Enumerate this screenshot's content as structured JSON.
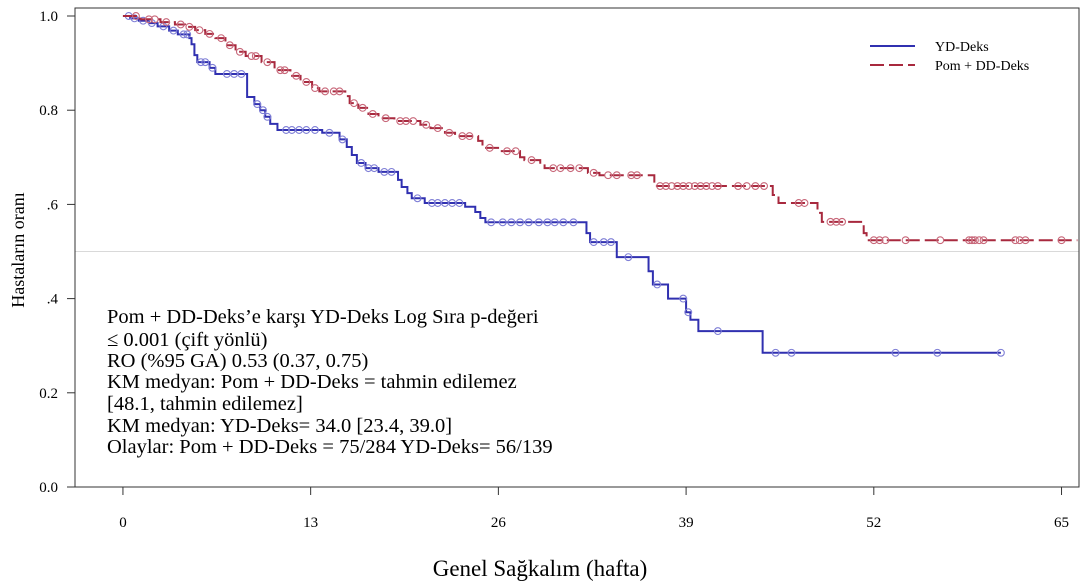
{
  "chart_data": {
    "type": "line",
    "xlabel": "Genel Sağkalım (hafta)",
    "ylabel": "Hastaların oranı",
    "xlim": [
      -3.32,
      66.21
    ],
    "ylim": [
      0,
      1.017
    ],
    "xticks": [
      0,
      13,
      26,
      39,
      52,
      65
    ],
    "xtick_labels": [
      "0",
      "13",
      "26",
      "39",
      "52",
      "65"
    ],
    "yticks": [
      1.0,
      0.8,
      0.6,
      0.4,
      0.2,
      0.0
    ],
    "ytick_labels": [
      "1.0",
      "0.8",
      ".6",
      ".4",
      "0.2",
      "0.0"
    ],
    "reference_line": 0.5,
    "grid": false,
    "legend_position": "top-right",
    "series": [
      {
        "name": "YD-Deks",
        "color": "#3030b0",
        "marker_color": "#7f7fd6",
        "line_style": "solid",
        "steps": [
          [
            0,
            1.0
          ],
          [
            0.5,
            0.995
          ],
          [
            1.1,
            0.99
          ],
          [
            1.8,
            0.985
          ],
          [
            2.4,
            0.978
          ],
          [
            3.2,
            0.969
          ],
          [
            3.8,
            0.961
          ],
          [
            4.6,
            0.953
          ],
          [
            4.75,
            0.94
          ],
          [
            4.95,
            0.917
          ],
          [
            5.15,
            0.902
          ],
          [
            6.0,
            0.89
          ],
          [
            6.4,
            0.877
          ],
          [
            8.6,
            0.828
          ],
          [
            9.1,
            0.813
          ],
          [
            9.5,
            0.8
          ],
          [
            9.85,
            0.786
          ],
          [
            10.2,
            0.771
          ],
          [
            10.7,
            0.758
          ],
          [
            13.8,
            0.752
          ],
          [
            15.0,
            0.738
          ],
          [
            15.5,
            0.722
          ],
          [
            15.85,
            0.705
          ],
          [
            16.2,
            0.688
          ],
          [
            16.8,
            0.677
          ],
          [
            17.7,
            0.669
          ],
          [
            19.05,
            0.652
          ],
          [
            19.3,
            0.637
          ],
          [
            19.7,
            0.624
          ],
          [
            20.0,
            0.613
          ],
          [
            20.9,
            0.603
          ],
          [
            23.7,
            0.595
          ],
          [
            24.4,
            0.584
          ],
          [
            24.75,
            0.571
          ],
          [
            25.1,
            0.562
          ],
          [
            32.1,
            0.539
          ],
          [
            32.35,
            0.52
          ],
          [
            34.2,
            0.488
          ],
          [
            36.4,
            0.458
          ],
          [
            36.7,
            0.43
          ],
          [
            37.75,
            0.4
          ],
          [
            39.0,
            0.371
          ],
          [
            39.3,
            0.355
          ],
          [
            39.85,
            0.331
          ],
          [
            44.3,
            0.285
          ]
        ],
        "end": 60.8,
        "censor_times": [
          0.4,
          0.8,
          1.4,
          2.0,
          2.8,
          3.5,
          4.2,
          4.45,
          5.4,
          5.7,
          6.2,
          7.2,
          7.7,
          8.2,
          9.3,
          9.7,
          10.0,
          11.3,
          11.7,
          12.2,
          12.7,
          13.3,
          14.3,
          15.2,
          16.5,
          17.0,
          17.4,
          18.1,
          18.6,
          20.4,
          21.4,
          21.8,
          22.3,
          22.8,
          23.3,
          25.5,
          26.3,
          26.9,
          27.5,
          28.1,
          28.8,
          29.4,
          29.9,
          30.5,
          31.2,
          32.6,
          33.3,
          33.8,
          35.0,
          37.0,
          38.8,
          39.15,
          41.2,
          45.2,
          46.3,
          53.5,
          56.4,
          60.8
        ]
      },
      {
        "name": "Pom + DD-Deks",
        "color": "#a8293e",
        "marker_color": "#c8687a",
        "line_style": "dashed",
        "steps": [
          [
            0,
            1.0
          ],
          [
            1.2,
            0.993
          ],
          [
            2.6,
            0.987
          ],
          [
            3.6,
            0.982
          ],
          [
            4.3,
            0.977
          ],
          [
            5.0,
            0.97
          ],
          [
            5.7,
            0.962
          ],
          [
            6.4,
            0.953
          ],
          [
            7.1,
            0.938
          ],
          [
            7.8,
            0.924
          ],
          [
            8.5,
            0.915
          ],
          [
            9.6,
            0.902
          ],
          [
            10.5,
            0.885
          ],
          [
            11.6,
            0.873
          ],
          [
            12.3,
            0.86
          ],
          [
            13.1,
            0.847
          ],
          [
            13.6,
            0.84
          ],
          [
            15.4,
            0.83
          ],
          [
            15.7,
            0.815
          ],
          [
            16.3,
            0.805
          ],
          [
            17.0,
            0.792
          ],
          [
            17.7,
            0.783
          ],
          [
            18.8,
            0.777
          ],
          [
            20.6,
            0.769
          ],
          [
            21.3,
            0.762
          ],
          [
            22.3,
            0.752
          ],
          [
            23.0,
            0.745
          ],
          [
            24.6,
            0.735
          ],
          [
            24.9,
            0.72
          ],
          [
            26.1,
            0.713
          ],
          [
            27.5,
            0.7
          ],
          [
            27.8,
            0.694
          ],
          [
            28.9,
            0.686
          ],
          [
            29.2,
            0.677
          ],
          [
            32.2,
            0.667
          ],
          [
            33.0,
            0.662
          ],
          [
            36.8,
            0.639
          ],
          [
            45.0,
            0.62
          ],
          [
            45.4,
            0.603
          ],
          [
            48.1,
            0.582
          ],
          [
            48.4,
            0.563
          ],
          [
            51.3,
            0.539
          ],
          [
            51.5,
            0.524
          ]
        ],
        "end": 66.1,
        "censor_times": [
          0.9,
          1.8,
          2.2,
          3.0,
          4.0,
          4.6,
          5.3,
          6.0,
          6.8,
          7.4,
          8.1,
          8.9,
          9.2,
          10.0,
          10.9,
          11.2,
          12.0,
          12.7,
          13.3,
          14.0,
          14.6,
          15.0,
          16.0,
          16.6,
          17.3,
          18.2,
          19.2,
          19.6,
          20.1,
          21.0,
          21.8,
          22.6,
          23.5,
          24.0,
          25.4,
          26.6,
          27.2,
          28.3,
          29.8,
          30.3,
          31.0,
          31.6,
          32.6,
          33.6,
          34.2,
          35.2,
          35.6,
          37.2,
          37.6,
          38.0,
          38.4,
          38.8,
          39.2,
          39.6,
          40.0,
          40.4,
          40.8,
          41.2,
          42.6,
          43.2,
          43.8,
          44.4,
          46.8,
          47.2,
          49.0,
          49.4,
          49.8,
          52.0,
          52.4,
          52.8,
          54.2,
          56.6,
          58.6,
          58.8,
          59.0,
          59.3,
          59.6,
          61.8,
          62.1,
          62.5,
          65.0
        ]
      }
    ],
    "annotations": [
      "Pom + DD-Deks’e karşı YD-Deks Log Sıra p-değeri",
      "≤ 0.001 (çift yönlü)",
      "RO (%95 GA) 0.53 (0.37, 0.75)",
      "KM medyan: Pom + DD-Deks = tahmin edilemez",
      "[48.1, tahmin edilemez]",
      "KM medyan: YD-Deks= 34.0 [23.4, 39.0]",
      "Olaylar: Pom + DD-Deks = 75/284 YD-Deks= 56/139"
    ]
  }
}
